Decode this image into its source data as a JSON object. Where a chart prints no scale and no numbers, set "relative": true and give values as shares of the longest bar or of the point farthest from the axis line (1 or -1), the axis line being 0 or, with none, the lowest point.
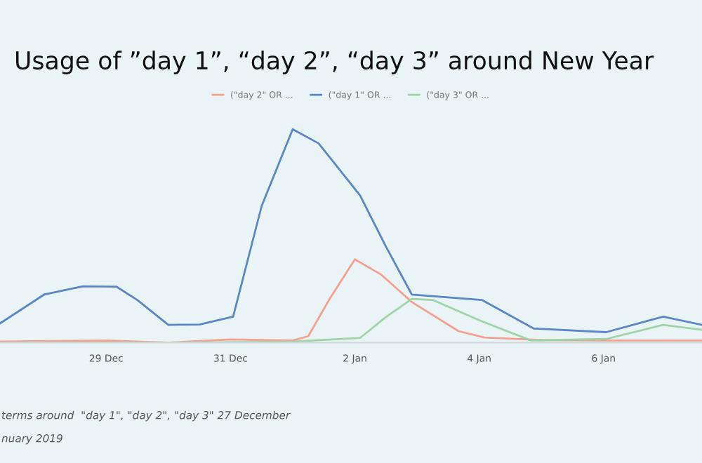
{
  "chart_data": {
    "type": "line",
    "title": "Usage of ”day 1”, “day 2”, “day 3” around New Year",
    "relative": true,
    "legend": "top",
    "grid": false,
    "marker": "none",
    "line_style": "solid",
    "xlim": [
      "2018-12-27T07:00",
      "2019-01-07T14:00"
    ],
    "xticks": [
      {
        "value": "2018-12-29",
        "label": "29 Dec"
      },
      {
        "value": "2018-12-31",
        "label": "31 Dec"
      },
      {
        "value": "2019-01-02",
        "label": "2 Jan"
      },
      {
        "value": "2019-01-04",
        "label": "4 Jan"
      },
      {
        "value": "2019-01-06",
        "label": "6 Jan"
      }
    ],
    "series": [
      {
        "name": "(\"day 2\" OR ...",
        "color": "#f4a08f",
        "x": [
          "2018-12-27T07:00",
          "2018-12-29T00:00",
          "2018-12-30T00:00",
          "2018-12-31T00:00",
          "2019-01-01T00:00",
          "2019-01-01T06:00",
          "2019-01-01T14:00",
          "2019-01-02T00:00",
          "2019-01-02T10:00",
          "2019-01-02T22:00",
          "2019-01-03T16:00",
          "2019-01-04T02:00",
          "2019-01-05T00:00",
          "2019-01-06T00:00",
          "2019-01-07T14:00"
        ],
        "values": [
          0.005,
          0.01,
          0.0,
          0.015,
          0.01,
          0.03,
          0.2,
          0.39,
          0.32,
          0.19,
          0.054,
          0.024,
          0.012,
          0.01,
          0.01
        ]
      },
      {
        "name": "(\"day 1\" OR ...",
        "color": "#5b86c5",
        "x": [
          "2018-12-27T07:00",
          "2018-12-28T00:00",
          "2018-12-28T15:00",
          "2018-12-29T04:00",
          "2018-12-29T12:00",
          "2018-12-30T00:00",
          "2018-12-30T12:00",
          "2018-12-31T01:00",
          "2018-12-31T12:00",
          "2019-01-01T00:00",
          "2019-01-01T10:00",
          "2019-01-02T02:00",
          "2019-01-02T12:00",
          "2019-01-02T22:00",
          "2019-01-04T01:00",
          "2019-01-04T21:00",
          "2019-01-06T01:00",
          "2019-01-06T23:00",
          "2019-01-07T14:00"
        ],
        "values": [
          0.09,
          0.225,
          0.264,
          0.262,
          0.2,
          0.083,
          0.085,
          0.122,
          0.64,
          1.0,
          0.934,
          0.69,
          0.45,
          0.225,
          0.2,
          0.066,
          0.049,
          0.122,
          0.083
        ]
      },
      {
        "name": "(\"day 3\" OR ...",
        "color": "#9fd3a8",
        "x": [
          "2018-12-27T07:00",
          "2018-12-30T00:00",
          "2019-01-01T00:00",
          "2019-01-02T02:00",
          "2019-01-02T12:00",
          "2019-01-02T22:00",
          "2019-01-03T06:00",
          "2019-01-04T01:00",
          "2019-01-04T20:00",
          "2019-01-06T01:00",
          "2019-01-06T23:00",
          "2019-01-07T14:00"
        ],
        "values": [
          0.0,
          0.0,
          0.005,
          0.022,
          0.12,
          0.205,
          0.2,
          0.1,
          0.01,
          0.017,
          0.083,
          0.06
        ]
      }
    ],
    "annotations": [
      "terms around  \"day 1\", \"day 2\", \"day 3\" 27 December",
      "nuary 2019"
    ]
  }
}
